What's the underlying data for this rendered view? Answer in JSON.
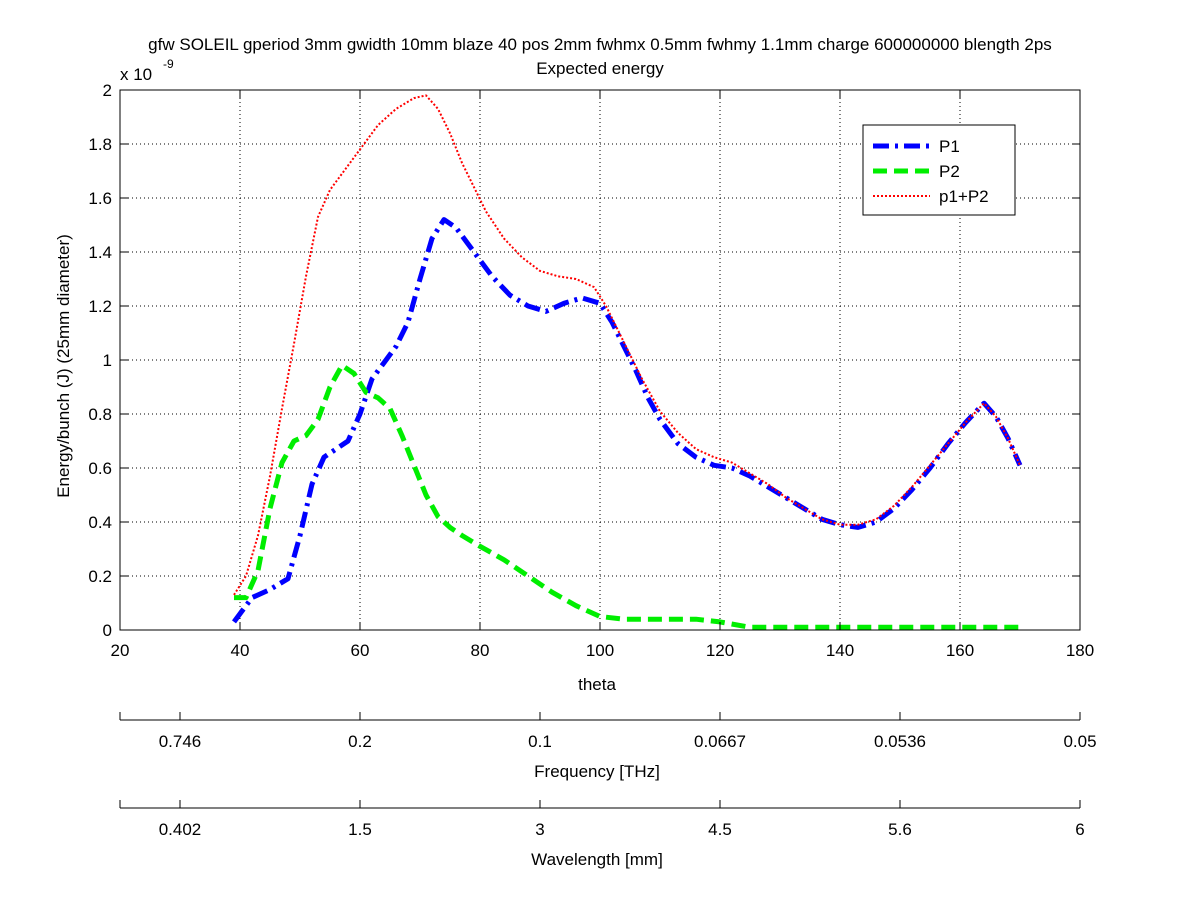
{
  "chart_data": {
    "type": "line",
    "title": "gfw SOLEIL gperiod 3mm gwidth 10mm blaze 40 pos 2mm fwhmx 0.5mm fwhmy 1.1mm charge 600000000 blength 2ps",
    "subtitle": "Expected energy",
    "xlabel": "theta",
    "ylabel": "Energy/bunch (J) (25mm diameter)",
    "y_multiplier": {
      "base": "x 10",
      "exponent": "-9"
    },
    "xlim": [
      20,
      180
    ],
    "ylim": [
      0,
      2
    ],
    "grid": true,
    "legend_position": "top-right",
    "x_ticks": [
      20,
      40,
      60,
      80,
      100,
      120,
      140,
      160,
      180
    ],
    "y_ticks": [
      0,
      0.2,
      0.4,
      0.6,
      0.8,
      1,
      1.2,
      1.4,
      1.6,
      1.8,
      2
    ],
    "secondary_axes": [
      {
        "label": "Frequency [THz]",
        "ticks": [
          "0.746",
          "0.2",
          "0.1",
          "0.0667",
          "0.0536",
          "0.05"
        ],
        "tick_at_theta": [
          30,
          60,
          90,
          120,
          150,
          180
        ]
      },
      {
        "label": "Wavelength [mm]",
        "ticks": [
          "0.402",
          "1.5",
          "3",
          "4.5",
          "5.6",
          "6"
        ],
        "tick_at_theta": [
          30,
          60,
          90,
          120,
          150,
          180
        ]
      }
    ],
    "series": [
      {
        "name": "P1",
        "color": "#0000ff",
        "style": "dashdot",
        "x": [
          39,
          42,
          45,
          48,
          50,
          52,
          54,
          56,
          58,
          60,
          62,
          64,
          66,
          68,
          70,
          72,
          74,
          76,
          78,
          80,
          82,
          85,
          88,
          91,
          94,
          97,
          100,
          102,
          104,
          106,
          108,
          110,
          113,
          116,
          119,
          122,
          125,
          128,
          131,
          134,
          137,
          140,
          143,
          146,
          149,
          152,
          155,
          158,
          161,
          164,
          166,
          168,
          170
        ],
        "y": [
          0.03,
          0.12,
          0.15,
          0.19,
          0.35,
          0.54,
          0.64,
          0.67,
          0.7,
          0.8,
          0.93,
          0.99,
          1.05,
          1.14,
          1.3,
          1.45,
          1.52,
          1.49,
          1.43,
          1.37,
          1.31,
          1.24,
          1.2,
          1.18,
          1.21,
          1.23,
          1.21,
          1.14,
          1.05,
          0.96,
          0.86,
          0.78,
          0.69,
          0.64,
          0.61,
          0.6,
          0.57,
          0.53,
          0.49,
          0.45,
          0.41,
          0.39,
          0.38,
          0.4,
          0.45,
          0.52,
          0.6,
          0.69,
          0.77,
          0.84,
          0.79,
          0.71,
          0.61
        ]
      },
      {
        "name": "P2",
        "color": "#00ee00",
        "style": "dashed",
        "x": [
          39,
          41,
          43,
          45,
          47,
          49,
          51,
          53,
          55,
          57,
          59,
          61,
          63,
          65,
          67,
          69,
          71,
          73,
          75,
          77,
          80,
          84,
          88,
          92,
          96,
          100,
          104,
          110,
          116,
          120,
          125,
          130,
          140,
          150,
          160,
          165,
          170
        ],
        "y": [
          0.12,
          0.12,
          0.22,
          0.45,
          0.62,
          0.7,
          0.72,
          0.78,
          0.9,
          0.98,
          0.95,
          0.88,
          0.86,
          0.82,
          0.72,
          0.61,
          0.5,
          0.42,
          0.38,
          0.35,
          0.31,
          0.26,
          0.2,
          0.14,
          0.09,
          0.05,
          0.04,
          0.04,
          0.04,
          0.03,
          0.01,
          0.01,
          0.01,
          0.01,
          0.01,
          0.01,
          0.01
        ]
      },
      {
        "name": "p1+P2",
        "color": "#ff0000",
        "style": "dotted",
        "x": [
          39,
          41,
          43,
          45,
          47,
          49,
          51,
          53,
          55,
          57,
          60,
          63,
          66,
          69,
          71,
          73,
          75,
          77,
          79,
          81,
          84,
          87,
          90,
          93,
          96,
          99,
          101,
          103,
          105,
          107,
          110,
          113,
          116,
          119,
          122,
          125,
          128,
          131,
          134,
          137,
          140,
          143,
          146,
          149,
          152,
          155,
          158,
          161,
          164,
          166,
          168,
          170
        ],
        "y": [
          0.13,
          0.2,
          0.35,
          0.57,
          0.82,
          1.06,
          1.31,
          1.53,
          1.63,
          1.69,
          1.78,
          1.87,
          1.93,
          1.97,
          1.98,
          1.93,
          1.84,
          1.73,
          1.64,
          1.55,
          1.45,
          1.38,
          1.33,
          1.31,
          1.3,
          1.27,
          1.2,
          1.11,
          1.02,
          0.93,
          0.81,
          0.73,
          0.67,
          0.64,
          0.62,
          0.58,
          0.54,
          0.49,
          0.45,
          0.41,
          0.39,
          0.39,
          0.41,
          0.46,
          0.53,
          0.61,
          0.69,
          0.77,
          0.84,
          0.79,
          0.71,
          0.61
        ]
      }
    ]
  }
}
